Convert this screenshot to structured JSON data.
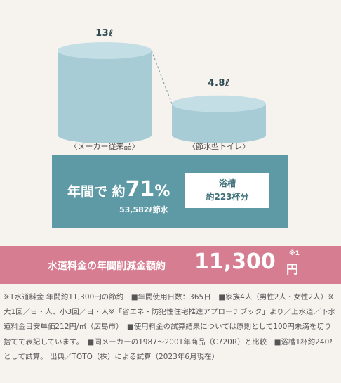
{
  "chart_data": {
    "type": "bar",
    "categories": [
      "〈メーカー従来品〉",
      "〈節水型トイレ〉"
    ],
    "values": [
      13,
      4.8
    ],
    "value_labels": [
      "13ℓ",
      "4.8ℓ"
    ],
    "ylim": [
      0,
      13
    ]
  },
  "saving": {
    "prefix": "年間で 約",
    "percent": "71",
    "percent_unit": "%",
    "amount": "53,582ℓ節水",
    "bath_line1": "浴槽",
    "bath_line2": "約223杯分"
  },
  "cost": {
    "label": "水道料金の年間削減金額約",
    "value": "11,300",
    "unit": "円",
    "note_mark": "※1"
  },
  "footnote": "※1水道料金 年間約11,300円の節約　■年間使用日数：365日　■家族4人（男性2人・女性2人）※大1回／日・人、小3回／日・人※「省エネ・防犯性住宅推進アプローチブック」より／上水道／下水道料金目安単価212円/㎥（広島市）　■使用料金の試算結果については原則として100円未満を切り捨てて表記しています。　■同メーカーの1987〜2001年商品（C720R）と比較　■浴槽1杯約240ℓとして試算。 出典／TOTO（株）による試算（2023年6月現在）",
  "colors": {
    "cylinder": "#a7ccd6",
    "cylinder_top": "#c4dee5",
    "panel": "#5e9aa6",
    "cost_bar": "#d77d91"
  }
}
